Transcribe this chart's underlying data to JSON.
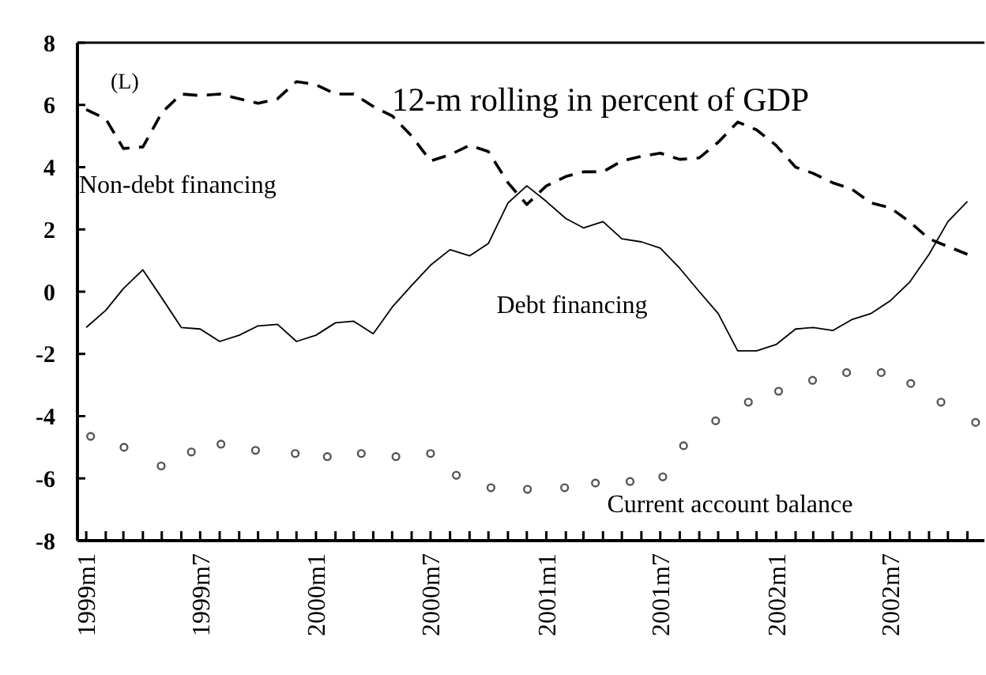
{
  "chart_data": {
    "type": "line",
    "title": "12-m rolling in percent of GDP",
    "annotations": [
      "(L)"
    ],
    "xlim": [
      "1998-12-18",
      "2002-11-28"
    ],
    "xticks": [
      {
        "value": "1999-01",
        "label": "1999m1"
      },
      {
        "value": "1999-02",
        "label": null
      },
      {
        "value": "1999-03",
        "label": null
      },
      {
        "value": "1999-04",
        "label": null
      },
      {
        "value": "1999-05",
        "label": null
      },
      {
        "value": "1999-06",
        "label": null
      },
      {
        "value": "1999-07",
        "label": "1999m7"
      },
      {
        "value": "1999-08",
        "label": null
      },
      {
        "value": "1999-09",
        "label": null
      },
      {
        "value": "1999-10",
        "label": null
      },
      {
        "value": "1999-11",
        "label": null
      },
      {
        "value": "1999-12",
        "label": null
      },
      {
        "value": "2000-01",
        "label": "2000m1"
      },
      {
        "value": "2000-02",
        "label": null
      },
      {
        "value": "2000-03",
        "label": null
      },
      {
        "value": "2000-04",
        "label": null
      },
      {
        "value": "2000-05",
        "label": null
      },
      {
        "value": "2000-06",
        "label": null
      },
      {
        "value": "2000-07",
        "label": "2000m7"
      },
      {
        "value": "2000-08",
        "label": null
      },
      {
        "value": "2000-09",
        "label": null
      },
      {
        "value": "2000-10",
        "label": null
      },
      {
        "value": "2000-11",
        "label": null
      },
      {
        "value": "2000-12",
        "label": null
      },
      {
        "value": "2001-01",
        "label": "2001m1"
      },
      {
        "value": "2001-02",
        "label": null
      },
      {
        "value": "2001-03",
        "label": null
      },
      {
        "value": "2001-04",
        "label": null
      },
      {
        "value": "2001-05",
        "label": null
      },
      {
        "value": "2001-06",
        "label": null
      },
      {
        "value": "2001-07",
        "label": "2001m7"
      },
      {
        "value": "2001-08",
        "label": null
      },
      {
        "value": "2001-09",
        "label": null
      },
      {
        "value": "2001-10",
        "label": null
      },
      {
        "value": "2001-11",
        "label": null
      },
      {
        "value": "2001-12",
        "label": null
      },
      {
        "value": "2002-01",
        "label": "2002m1"
      },
      {
        "value": "2002-02",
        "label": null
      },
      {
        "value": "2002-03",
        "label": null
      },
      {
        "value": "2002-04",
        "label": null
      },
      {
        "value": "2002-05",
        "label": null
      },
      {
        "value": "2002-06",
        "label": null
      },
      {
        "value": "2002-07",
        "label": "2002m7"
      },
      {
        "value": "2002-08",
        "label": null
      },
      {
        "value": "2002-09",
        "label": null
      },
      {
        "value": "2002-10",
        "label": null
      },
      {
        "value": "2002-11",
        "label": null
      }
    ],
    "ylim": [
      -8,
      8
    ],
    "yticks": [
      -8,
      -6,
      -4,
      -2,
      0,
      2,
      4,
      6,
      8
    ],
    "x": [
      "1999-01",
      "1999-02",
      "1999-03",
      "1999-04",
      "1999-05",
      "1999-06",
      "1999-07",
      "1999-08",
      "1999-09",
      "1999-10",
      "1999-11",
      "1999-12",
      "2000-01",
      "2000-02",
      "2000-03",
      "2000-04",
      "2000-05",
      "2000-06",
      "2000-07",
      "2000-08",
      "2000-09",
      "2000-10",
      "2000-11",
      "2000-12",
      "2001-01",
      "2001-02",
      "2001-03",
      "2001-04",
      "2001-05",
      "2001-06",
      "2001-07",
      "2001-08",
      "2001-09",
      "2001-10",
      "2001-11",
      "2001-12",
      "2002-01",
      "2002-02",
      "2002-03",
      "2002-04",
      "2002-05",
      "2002-06",
      "2002-07",
      "2002-08",
      "2002-09",
      "2002-10",
      "2002-11"
    ],
    "series": [
      {
        "name": "Non-debt financing",
        "color": "#000000",
        "line_style": "dashed",
        "values": [
          5.85,
          5.55,
          4.6,
          4.65,
          5.75,
          6.35,
          6.3,
          6.35,
          6.2,
          6.05,
          6.2,
          6.75,
          6.65,
          6.35,
          6.35,
          5.95,
          5.65,
          5.0,
          4.2,
          4.4,
          4.7,
          4.5,
          3.5,
          2.8,
          3.4,
          3.7,
          3.85,
          3.85,
          4.2,
          4.35,
          4.45,
          4.25,
          4.3,
          4.8,
          5.45,
          5.2,
          4.7,
          4.0,
          3.8,
          3.5,
          3.3,
          2.85,
          2.7,
          2.25,
          1.7,
          1.45,
          1.2
        ]
      },
      {
        "name": "Debt financing",
        "color": "#000000",
        "line_style": "solid",
        "values": [
          -1.15,
          -0.6,
          0.1,
          0.7,
          -0.2,
          -1.15,
          -1.2,
          -1.6,
          -1.4,
          -1.1,
          -1.05,
          -1.6,
          -1.4,
          -1.0,
          -0.95,
          -1.35,
          -0.5,
          0.2,
          0.85,
          1.35,
          1.15,
          1.55,
          2.85,
          3.4,
          2.9,
          2.35,
          2.05,
          2.25,
          1.7,
          1.6,
          1.4,
          0.75,
          0.0,
          -0.7,
          -1.9,
          -1.9,
          -1.7,
          -1.2,
          -1.15,
          -1.25,
          -0.9,
          -0.7,
          -0.3,
          0.3,
          1.2,
          2.25,
          2.9
        ]
      },
      {
        "name": "Current account balance",
        "color": "#555555",
        "type": "scatter",
        "marker": "circle",
        "x": [
          "1999-01-08",
          "1999-03-02",
          "1999-04-30",
          "1999-06-17",
          "1999-08-03",
          "1999-09-27",
          "1999-11-29",
          "2000-01-19",
          "2000-03-13",
          "2000-05-07",
          "2000-07-01",
          "2000-08-11",
          "2000-10-05",
          "2000-12-02",
          "2001-01-30",
          "2001-03-20",
          "2001-05-14",
          "2001-07-05",
          "2001-08-07",
          "2001-09-27",
          "2001-11-18",
          "2002-01-05",
          "2002-02-28",
          "2002-04-23",
          "2002-06-17",
          "2002-08-03",
          "2002-09-20",
          "2002-11-14"
        ],
        "values": [
          -4.65,
          -5.0,
          -5.6,
          -5.15,
          -4.9,
          -5.1,
          -5.2,
          -5.3,
          -5.2,
          -5.3,
          -5.2,
          -5.9,
          -6.3,
          -6.35,
          -6.3,
          -6.15,
          -6.1,
          -5.95,
          -4.95,
          -4.15,
          -3.55,
          -3.2,
          -2.85,
          -2.6,
          -2.6,
          -2.95,
          -3.55,
          -4.2
        ]
      }
    ]
  }
}
